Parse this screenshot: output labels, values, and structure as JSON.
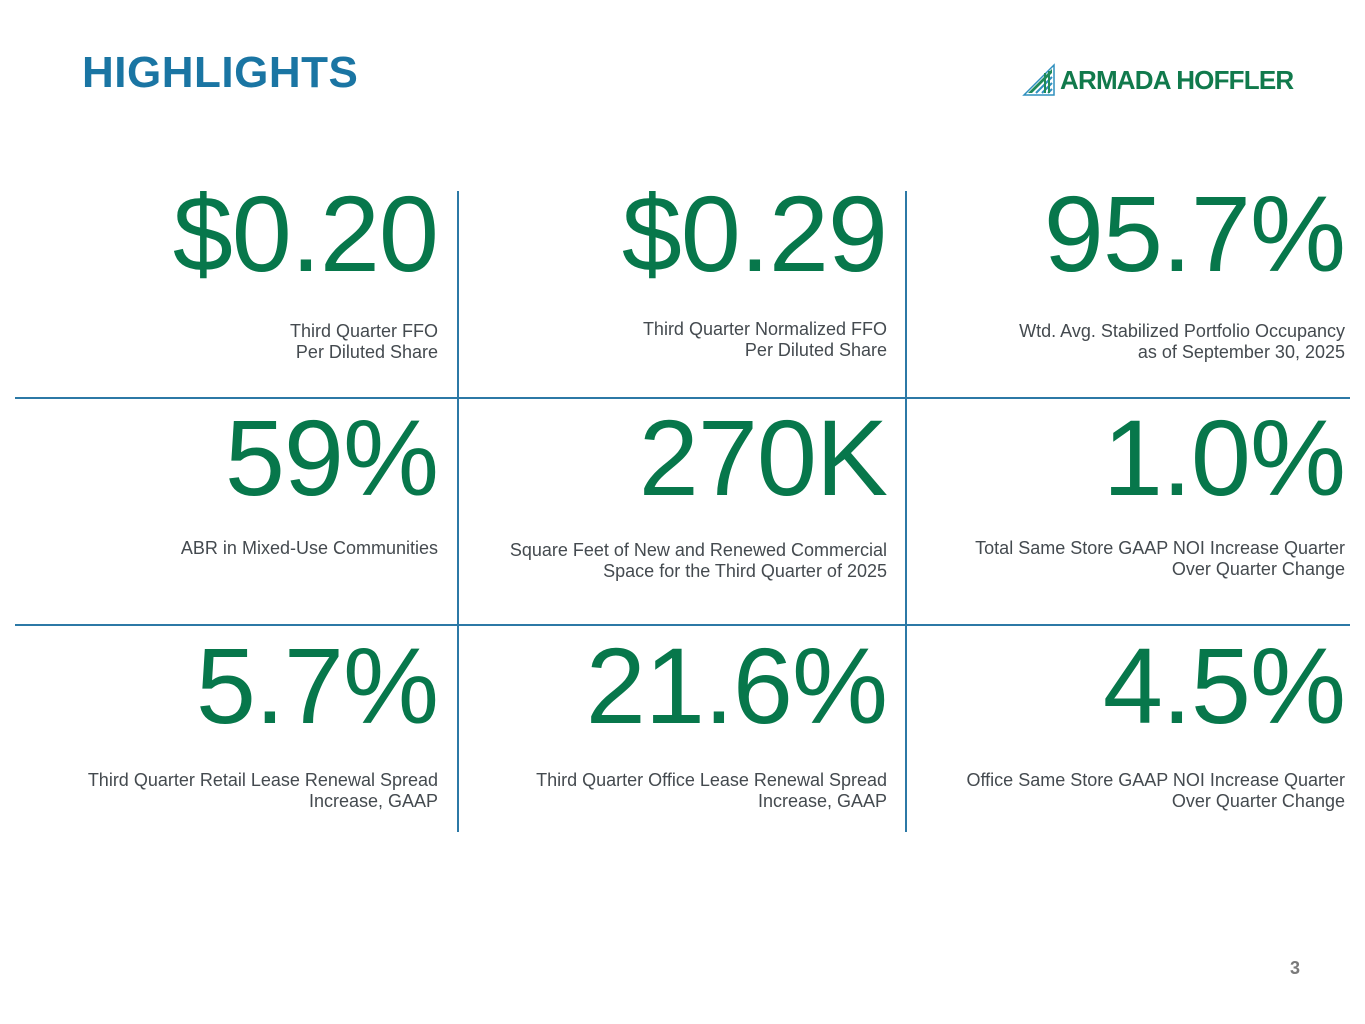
{
  "header": {
    "title": "HIGHLIGHTS",
    "logo_text": "ARMADA HOFFLER",
    "logo_icon": "armada-hoffler-logo-icon",
    "colors": {
      "title": "#1a75a3",
      "value": "#07774b",
      "label": "#444a4f",
      "divider": "#2c79a6"
    }
  },
  "metrics": [
    {
      "value": "$0.20",
      "label": "Third Quarter FFO\nPer Diluted Share"
    },
    {
      "value": "$0.29",
      "label": "Third Quarter Normalized FFO\nPer Diluted Share"
    },
    {
      "value": "95.7%",
      "label": "Wtd. Avg. Stabilized Portfolio Occupancy\nas of September 30, 2025"
    },
    {
      "value": "59%",
      "label": "ABR in Mixed-Use Communities"
    },
    {
      "value": "270K",
      "label": "Square Feet of New and Renewed Commercial\nSpace for the Third Quarter of 2025"
    },
    {
      "value": "1.0%",
      "label": "Total Same Store GAAP NOI Increase Quarter\nOver Quarter Change"
    },
    {
      "value": "5.7%",
      "label": "Third Quarter Retail Lease Renewal Spread\nIncrease, GAAP"
    },
    {
      "value": "21.6%",
      "label": "Third Quarter Office Lease Renewal Spread\nIncrease, GAAP"
    },
    {
      "value": "4.5%",
      "label": "Office Same Store GAAP NOI Increase Quarter\nOver Quarter Change"
    }
  ],
  "footer": {
    "page_number": "3"
  }
}
